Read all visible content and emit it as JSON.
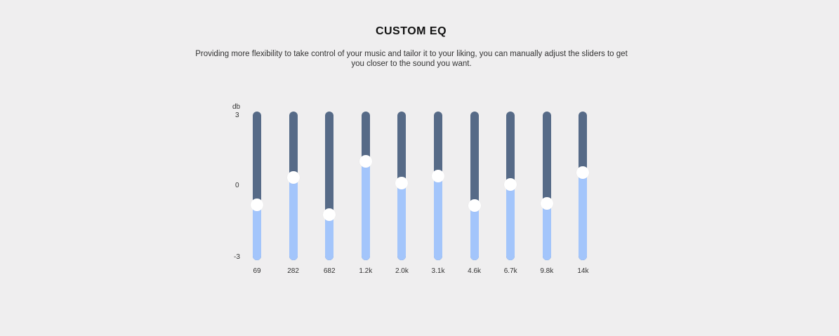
{
  "header": {
    "title": "CUSTOM EQ",
    "description": "Providing more flexibility to take control of your music and tailor it to your liking, you can manually adjust the sliders to get you closer to the sound you want."
  },
  "eq": {
    "unit_label": "db",
    "max_label": "3",
    "mid_label": "0",
    "min_label": "-3",
    "range": [
      -3,
      3
    ],
    "bands": [
      {
        "freq": "69",
        "gain": -0.75
      },
      {
        "freq": "282",
        "gain": 0.35
      },
      {
        "freq": "682",
        "gain": -1.15
      },
      {
        "freq": "1.2k",
        "gain": 1.0
      },
      {
        "freq": "2.0k",
        "gain": 0.1
      },
      {
        "freq": "3.1k",
        "gain": 0.4
      },
      {
        "freq": "4.6k",
        "gain": -0.8
      },
      {
        "freq": "6.7k",
        "gain": 0.05
      },
      {
        "freq": "9.8k",
        "gain": -0.7
      },
      {
        "freq": "14k",
        "gain": 0.55
      }
    ],
    "colors": {
      "track": "#566a87",
      "fill": "#a3c5fb",
      "thumb": "#ffffff"
    }
  }
}
